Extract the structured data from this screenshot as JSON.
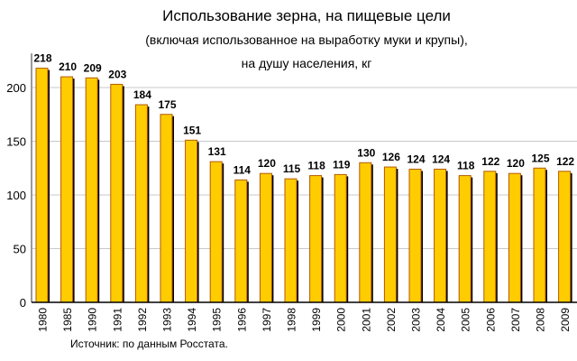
{
  "chart_data": {
    "type": "bar",
    "title": "Использование зерна, на пищевые цели",
    "subtitle_1": "(включая использованное на выработку муки и крупы),",
    "subtitle_2": "на душу населения, кг",
    "source": "Источник: по данным Росстата.",
    "categories": [
      "1980",
      "1985",
      "1990",
      "1991",
      "1992",
      "1993",
      "1994",
      "1995",
      "1996",
      "1997",
      "1998",
      "1999",
      "2000",
      "2001",
      "2002",
      "2003",
      "2004",
      "2005",
      "2006",
      "2007",
      "2008",
      "2009"
    ],
    "values": [
      218,
      210,
      209,
      203,
      184,
      175,
      151,
      131,
      114,
      120,
      115,
      118,
      119,
      130,
      126,
      124,
      124,
      118,
      122,
      120,
      125,
      122
    ],
    "yticks": [
      0,
      50,
      100,
      150,
      200
    ],
    "ylim": [
      0,
      225
    ],
    "grid": true,
    "bar_color": "#FFCC00",
    "bar_edge_color": "#B35900",
    "shadow_color": "#000000"
  }
}
